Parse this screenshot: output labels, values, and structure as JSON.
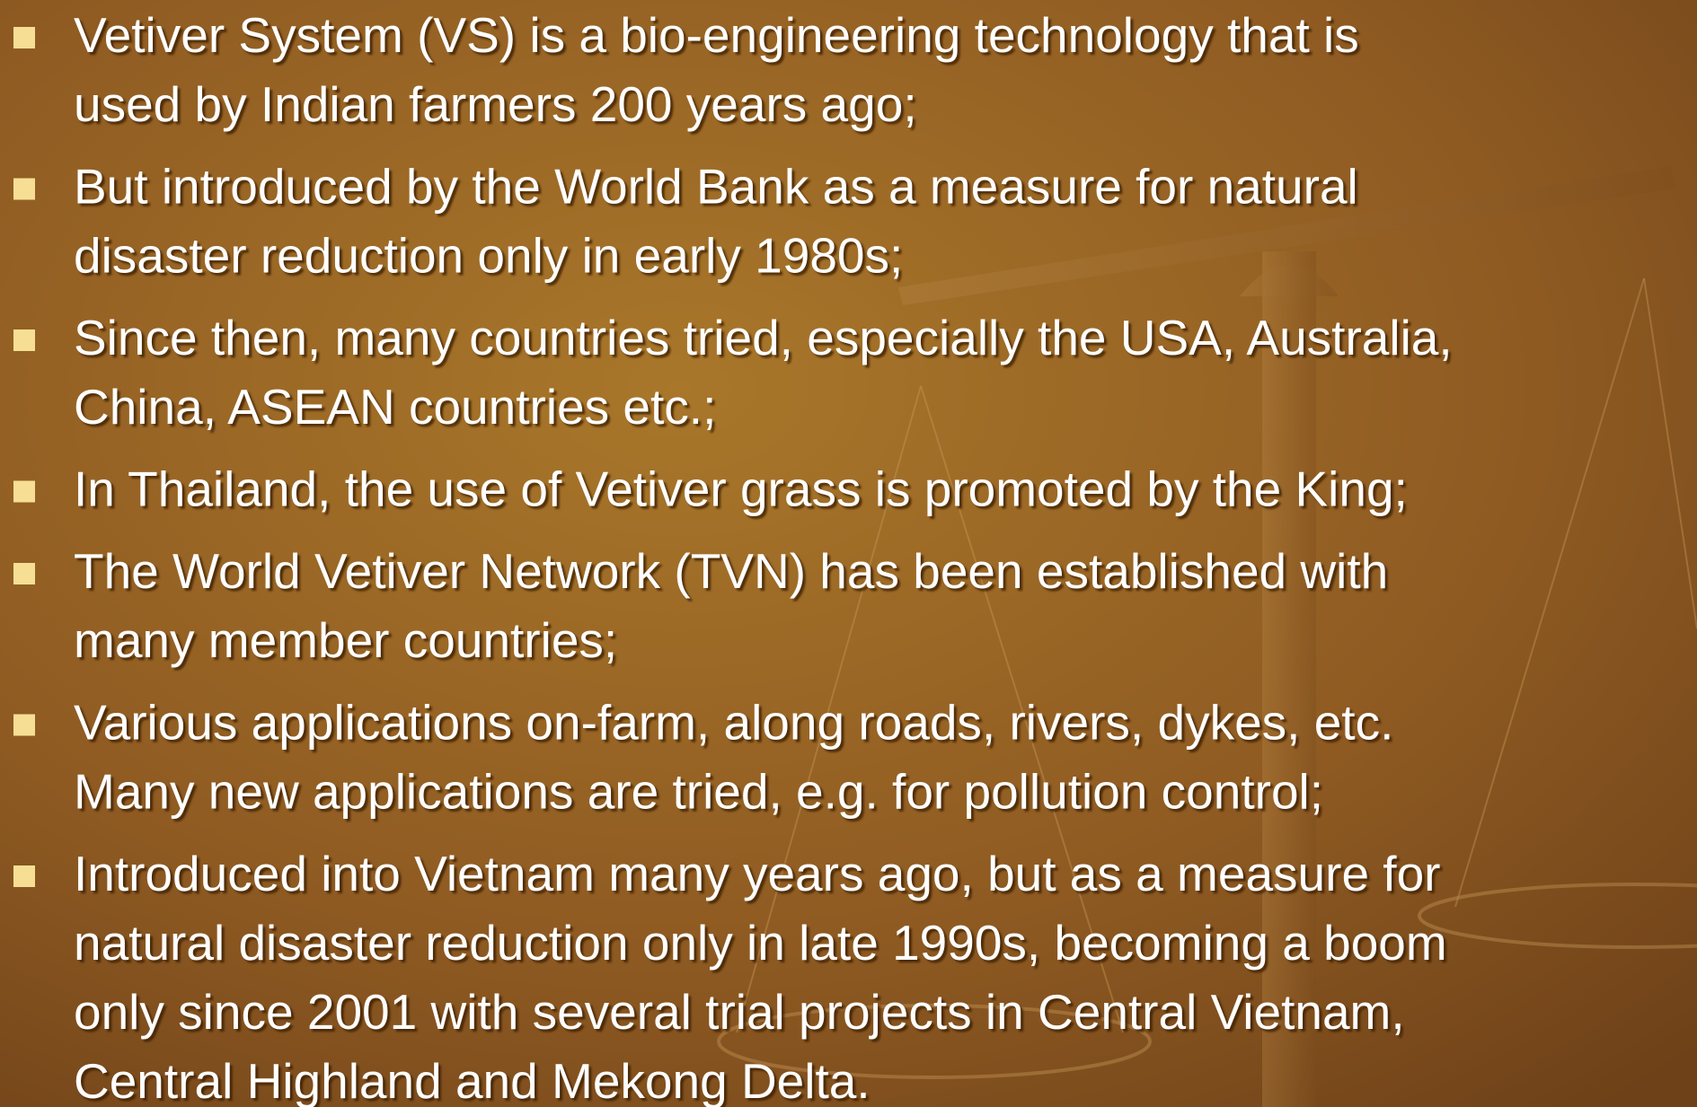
{
  "bullets": [
    {
      "lines": [
        "Vetiver System (VS) is a bio-engineering technology that is",
        "used by Indian farmers 200 years ago;"
      ]
    },
    {
      "lines": [
        "But introduced by the World Bank as a measure for natural",
        "disaster reduction only in early 1980s;"
      ]
    },
    {
      "lines": [
        "Since then, many countries tried, especially the USA, Australia,",
        "China, ASEAN countries etc.;"
      ]
    },
    {
      "lines": [
        "In Thailand, the use of Vetiver grass is promoted by the King;"
      ]
    },
    {
      "lines": [
        "The World Vetiver Network (TVN) has been established with",
        "many member countries;"
      ]
    },
    {
      "lines": [
        "Various applications on-farm, along roads, rivers, dykes, etc.",
        "Many new applications are tried, e.g. for pollution control;"
      ]
    },
    {
      "lines": [
        "Introduced into Vietnam many years ago, but as a measure for",
        "natural disaster reduction only in late 1990s, becoming a boom",
        "only since 2001 with several trial projects in Central Vietnam,",
        "Central Highland and Mekong Delta."
      ]
    }
  ]
}
